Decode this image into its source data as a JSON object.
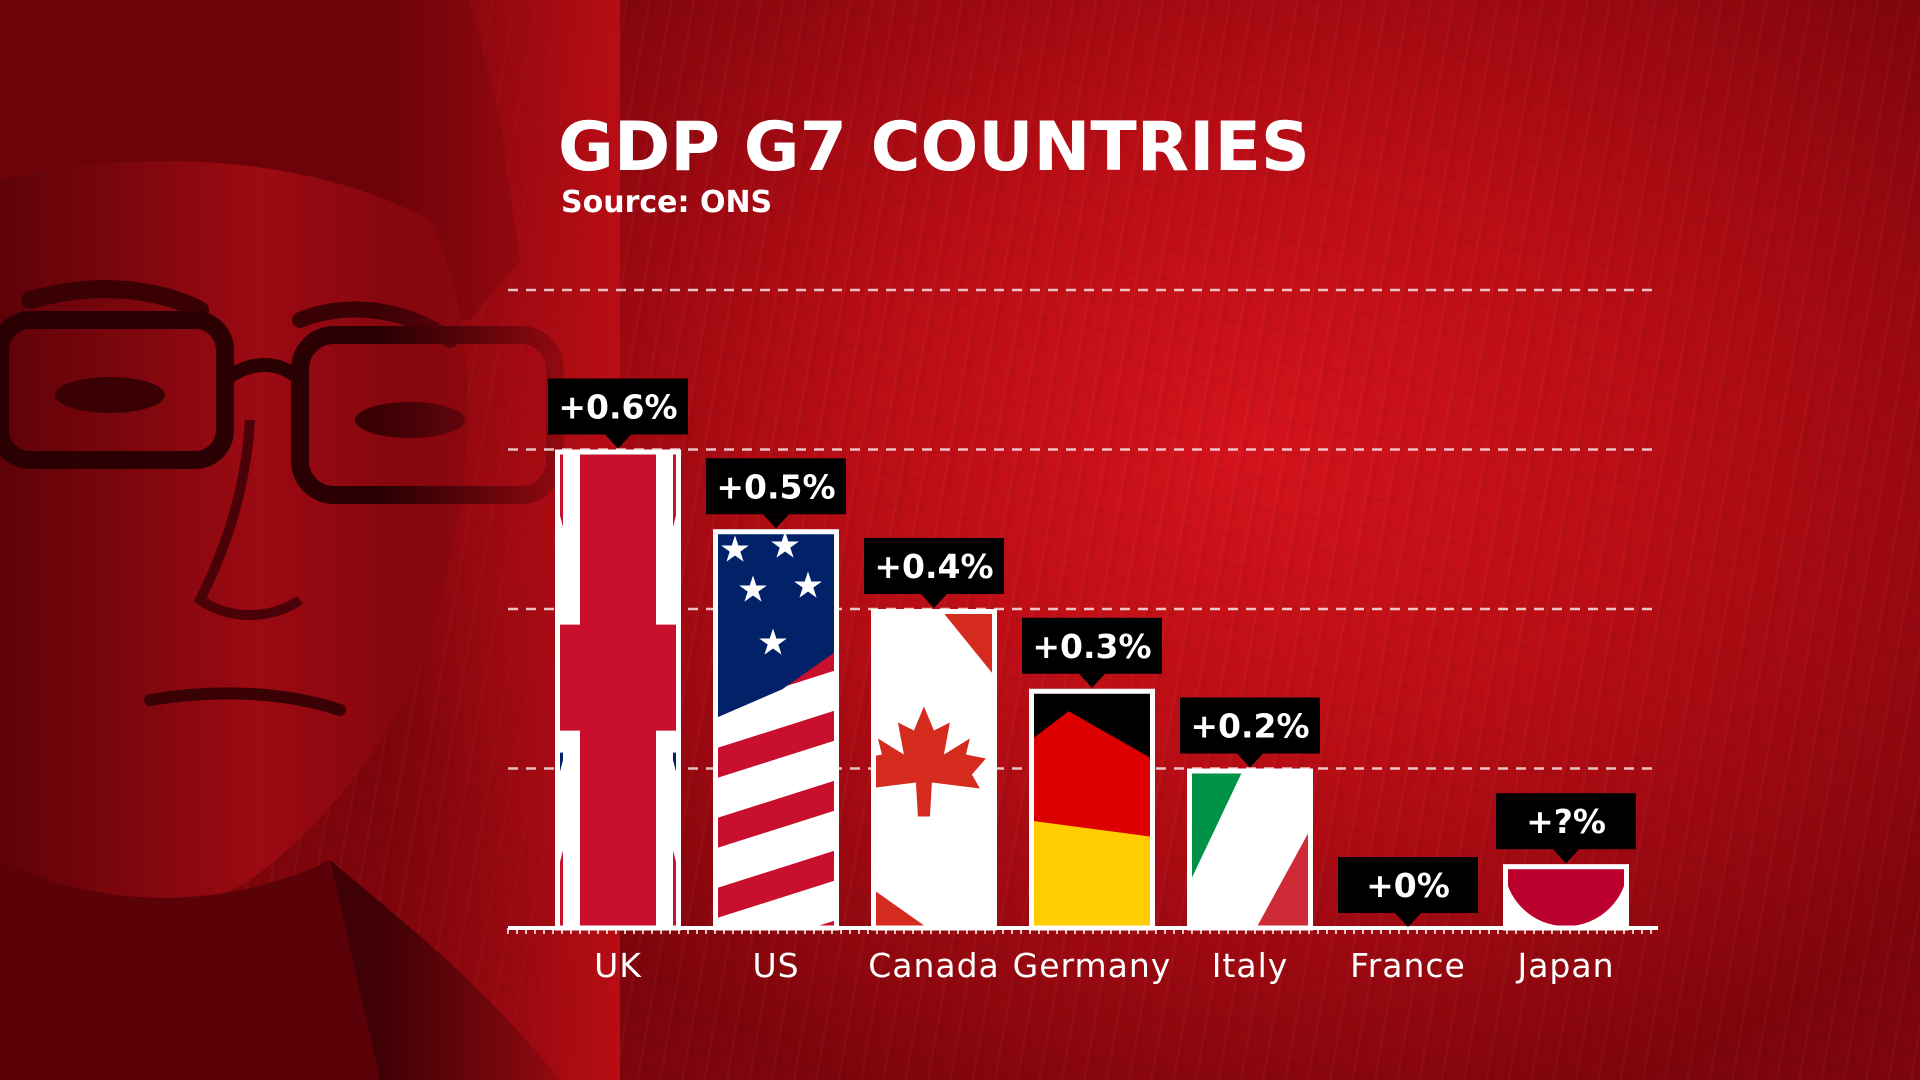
{
  "chart_data": {
    "type": "bar",
    "title": "GDP G7 COUNTRIES",
    "subtitle": "Source: ONS",
    "categories": [
      "UK",
      "US",
      "Canada",
      "Germany",
      "Italy",
      "France",
      "Japan"
    ],
    "values": [
      0.6,
      0.5,
      0.4,
      0.3,
      0.2,
      0.0,
      0.08
    ],
    "data_labels": [
      "+0.6%",
      "+0.5%",
      "+0.4%",
      "+0.3%",
      "+0.2%",
      "+0%",
      "+?%"
    ],
    "bar_fills": [
      "uk-flag",
      "us-flag",
      "canada-flag",
      "germany-flag",
      "italy-flag",
      "france-flag",
      "japan-flag"
    ],
    "ylim": [
      0,
      0.8
    ],
    "gridlines": [
      0.2,
      0.4,
      0.6,
      0.8
    ],
    "grid": "dashed",
    "legend": "none"
  },
  "colors": {
    "background": "#b90d15",
    "text": "#ffffff",
    "label_box": "#000000",
    "union_red": "#c8102e",
    "union_blue": "#012169",
    "canada_red": "#d52b1e",
    "germany_black": "#000000",
    "germany_red": "#dd0000",
    "germany_gold": "#ffce00",
    "italy_green": "#009246",
    "italy_red": "#ce2b37",
    "japan_red": "#bc002d"
  },
  "icons": {
    "background_photo": "portrait-photo-red-tint"
  }
}
